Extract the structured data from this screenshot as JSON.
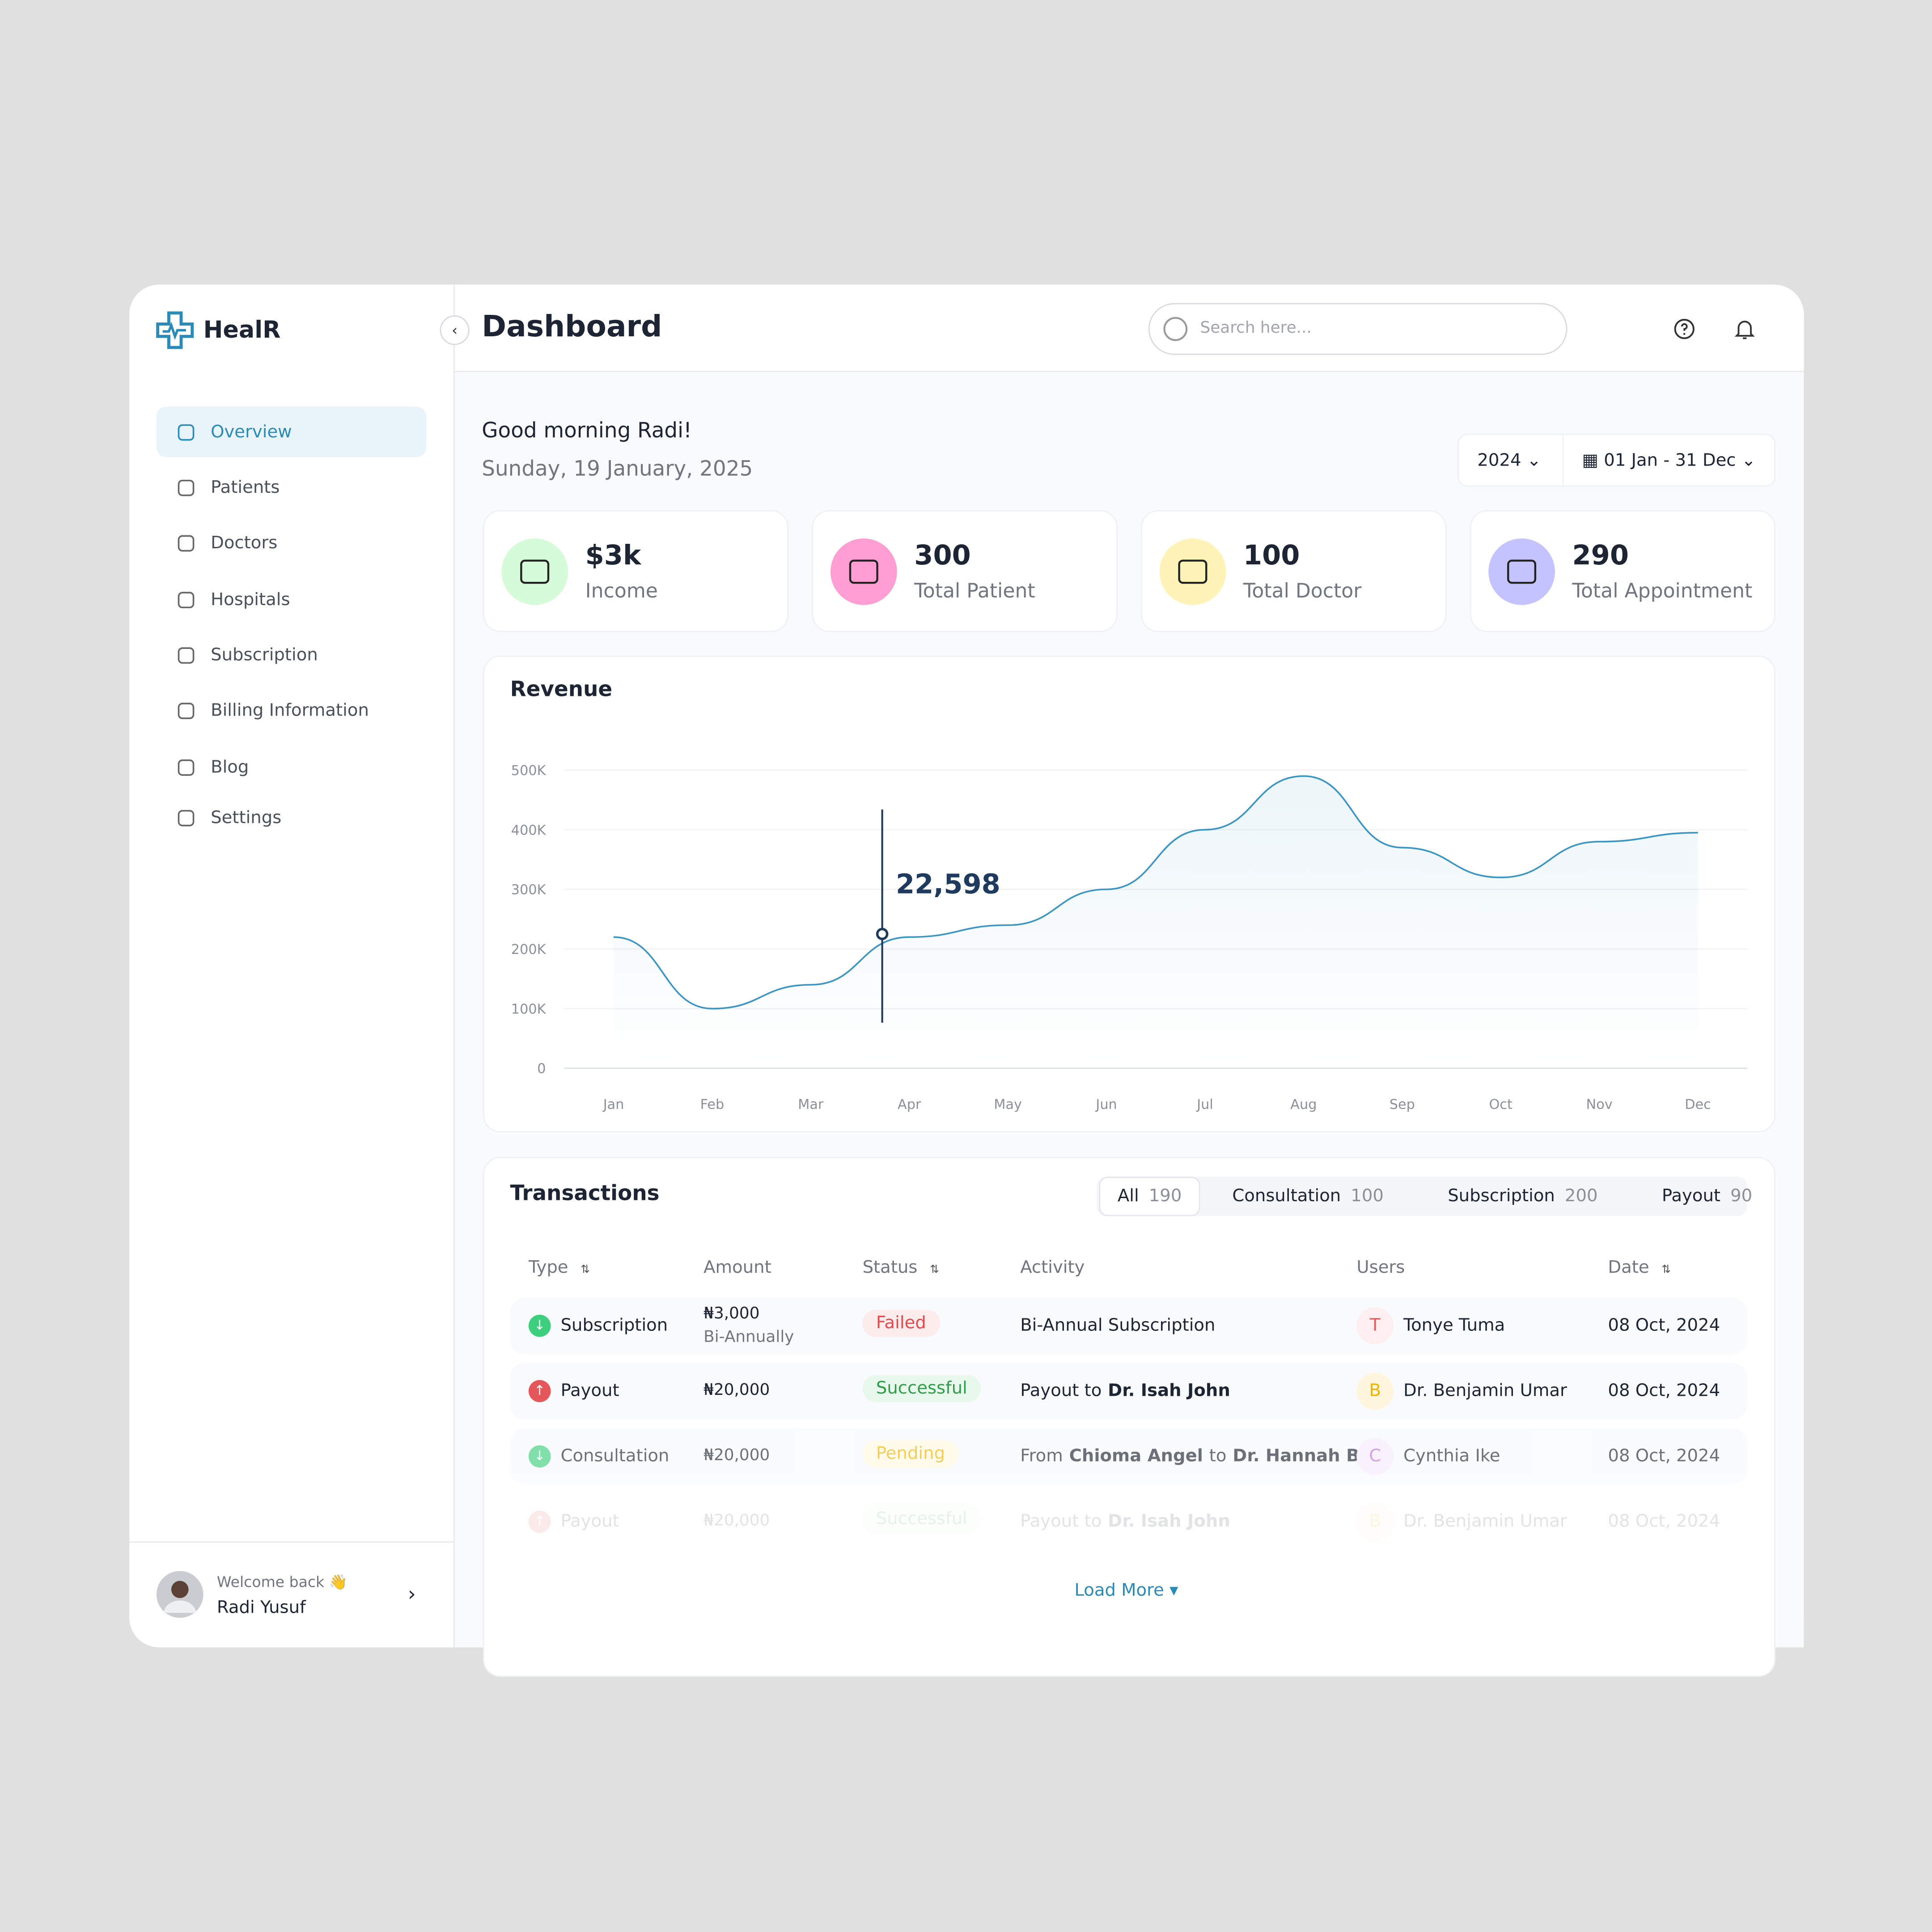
{
  "brand": "HealR",
  "sidebar": {
    "nav": [
      "Overview",
      "Patients",
      "Doctors",
      "Hospitals",
      "Subscription",
      "Billing Information",
      "Blog",
      "Settings"
    ],
    "welcome": "Welcome back 👋",
    "user": "Radi Yusuf"
  },
  "header": {
    "title": "Dashboard",
    "search_placeholder": "Search here..."
  },
  "greeting": {
    "title": "Good morning Radi!",
    "date": "Sunday, 19 January, 2025"
  },
  "filters": {
    "year": "2024",
    "range": "01 Jan - 31 Dec"
  },
  "stats": [
    {
      "value": "$3k",
      "label": "Income",
      "color": "#d6fbd9"
    },
    {
      "value": "300",
      "label": "Total Patient",
      "color": "#ff9ed3"
    },
    {
      "value": "100",
      "label": "Total Doctor",
      "color": "#fff3b8"
    },
    {
      "value": "290",
      "label": "Total Appointment",
      "color": "#c4c2ff"
    }
  ],
  "chart_data": {
    "type": "line",
    "title": "Revenue",
    "categories": [
      "Jan",
      "Feb",
      "Mar",
      "Apr",
      "May",
      "Jun",
      "Jul",
      "Aug",
      "Sep",
      "Oct",
      "Nov",
      "Dec"
    ],
    "series": [
      {
        "name": "Revenue",
        "color": "#3a95c4",
        "values": [
          220000,
          100000,
          140000,
          220000,
          240000,
          300000,
          400000,
          490000,
          370000,
          320000,
          380000,
          395000
        ]
      }
    ],
    "ylim": [
      0,
      500000
    ],
    "yticks": [
      0,
      {
        "value": 100000,
        "label": "100K"
      },
      {
        "value": 200000,
        "label": "200K"
      },
      {
        "value": 300000,
        "label": "300K"
      },
      {
        "value": 400000,
        "label": "400K"
      },
      {
        "value": 500000,
        "label": "500K"
      }
    ],
    "grid": true,
    "annotation": "22,598"
  },
  "transactions": {
    "title": "Transactions",
    "tabs": [
      {
        "label": "All",
        "count": "190"
      },
      {
        "label": "Consultation",
        "count": "100"
      },
      {
        "label": "Subscription",
        "count": "200"
      },
      {
        "label": "Payout",
        "count": "90"
      }
    ],
    "columns": [
      "Type",
      "Amount",
      "Status",
      "Activity",
      "Users",
      "Date"
    ],
    "rows": [
      {
        "type": "Subscription",
        "type_color": "#3ecf7e",
        "amount": "₦3,000",
        "amount_note": "Bi-Annually",
        "status": "Failed",
        "status_color": "#e5484d",
        "status_bg": "#fdecec",
        "activity": [
          {
            "text": "Bi-Annual Subscription",
            "bold": false
          }
        ],
        "initial": "T",
        "user_color": "#e5575a",
        "user_bg": "#fdeef0",
        "user": "Tonye Tuma",
        "date": "08 Oct, 2024"
      },
      {
        "type": "Payout",
        "type_color": "#e5575a",
        "amount": "₦20,000",
        "status": "Successful",
        "status_color": "#2e9e48",
        "status_bg": "#e8f8ec",
        "activity": [
          {
            "text": "Payout to",
            "bold": false
          },
          {
            "text": "Dr. Isah John",
            "bold": true
          }
        ],
        "initial": "B",
        "user_color": "#f0b400",
        "user_bg": "#fff6dd",
        "user": "Dr. Benjamin Umar",
        "date": "08 Oct, 2024"
      },
      {
        "type": "Consultation",
        "type_color": "#3ecf7e",
        "amount": "₦20,000",
        "status": "Pending",
        "status_color": "#f0b400",
        "status_bg": "#fff8e0",
        "activity": [
          {
            "text": "From",
            "bold": false
          },
          {
            "text": "Chioma Angel",
            "bold": true
          },
          {
            "text": "to",
            "bold": false
          },
          {
            "text": "Dr. Hannah B.",
            "bold": true
          }
        ],
        "initial": "C",
        "user_color": "#c06be0",
        "user_bg": "#f6ecfc",
        "user": "Cynthia Ike",
        "date": "08 Oct, 2024"
      },
      {
        "type": "Payout",
        "type_color": "#e5575a",
        "amount": "₦20,000",
        "status": "Successful",
        "status_color": "#2e9e48",
        "status_bg": "#e8f8ec",
        "activity": [
          {
            "text": "Payout to",
            "bold": false
          },
          {
            "text": "Dr. Isah John",
            "bold": true
          }
        ],
        "initial": "B",
        "user_color": "#f0b400",
        "user_bg": "#fff6dd",
        "user": "Dr. Benjamin Umar",
        "date": "08 Oct, 2024"
      }
    ],
    "load_more": "Load More"
  }
}
